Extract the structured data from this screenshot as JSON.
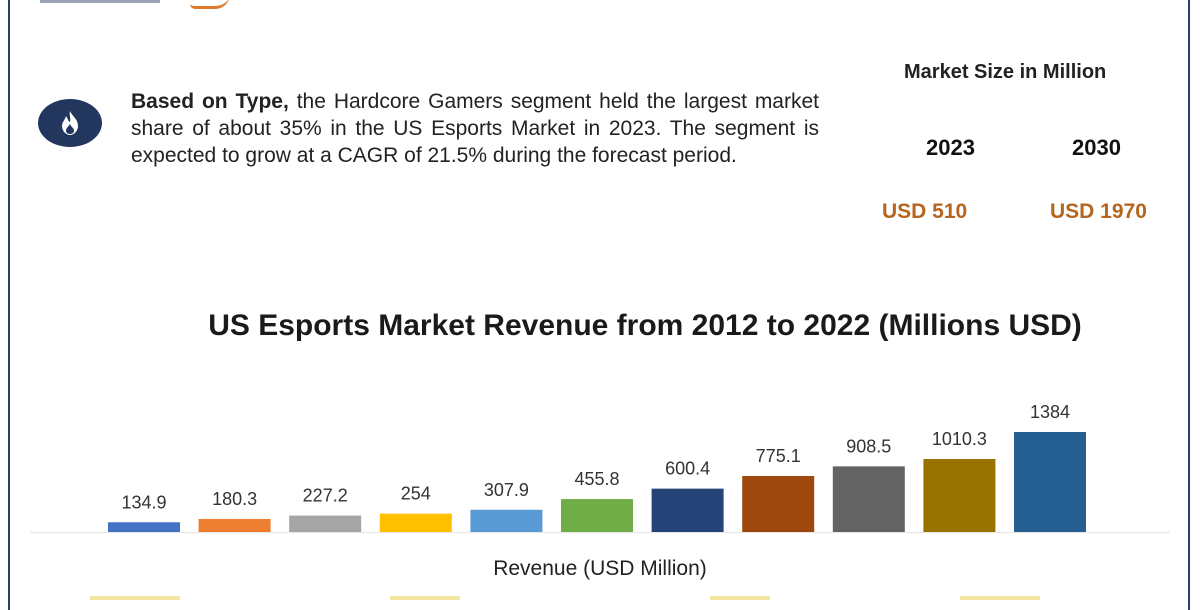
{
  "summary": {
    "lead": "Based on Type,",
    "body": " the Hardcore Gamers segment held the largest market share of about 35% in the US Esports Market in 2023. The segment is expected to grow at a CAGR of 21.5% during the forecast period.",
    "icon": "flame-icon"
  },
  "market_size": {
    "title": "Market Size in Million",
    "years": [
      {
        "year": "2023",
        "value": "USD 510"
      },
      {
        "year": "2030",
        "value": "USD 1970"
      }
    ],
    "value_color": "#b5651d"
  },
  "chart_data": {
    "type": "bar",
    "title": "US Esports Market Revenue from 2012 to 2022 (Millions USD)",
    "xlabel": "Revenue (USD Million)",
    "ylabel": "",
    "ylim": [
      0,
      1384
    ],
    "categories": [],
    "values": [
      134.9,
      180.3,
      227.2,
      254,
      307.9,
      455.8,
      600.4,
      775.1,
      908.5,
      1010.3,
      1384
    ],
    "labels": [
      "134.9",
      "180.3",
      "227.2",
      "254",
      "307.9",
      "455.8",
      "600.4",
      "775.1",
      "908.5",
      "1010.3",
      "1384"
    ],
    "colors": [
      "#4472c4",
      "#ed7d31",
      "#a5a5a5",
      "#ffc000",
      "#5b9bd5",
      "#70ad47",
      "#264478",
      "#9e480e",
      "#636363",
      "#997300",
      "#255e91"
    ],
    "grid": false,
    "legend": "none"
  }
}
